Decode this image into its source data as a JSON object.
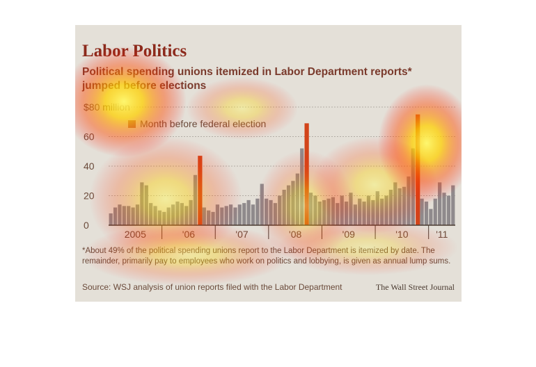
{
  "chart_data": {
    "type": "bar",
    "title": "Labor Politics",
    "subtitle": "Political spending unions itemized in Labor Department reports* jumped before elections",
    "ylabel": "$80 million",
    "ylim": [
      0,
      80
    ],
    "yticks": [
      "$80 million",
      "60",
      "40",
      "20",
      "0"
    ],
    "ytick_values": [
      80,
      60,
      40,
      20,
      0
    ],
    "xticks": [
      "2005",
      "'06",
      "'07",
      "'08",
      "'09",
      "'10",
      "'11"
    ],
    "legend": "Month before federal election",
    "grid": true,
    "series": [
      {
        "values": [
          8,
          12,
          14,
          13,
          13,
          12,
          14,
          29,
          27,
          15,
          13,
          10,
          9,
          12,
          14,
          16,
          15,
          13,
          17,
          34,
          47,
          12,
          10,
          9,
          14,
          12,
          13,
          14,
          12,
          14,
          15,
          17,
          14,
          18,
          28,
          18,
          17,
          15,
          20,
          24,
          27,
          30,
          35,
          52,
          69,
          22,
          20,
          16,
          17,
          18,
          19,
          15,
          20,
          16,
          22,
          14,
          18,
          16,
          20,
          17,
          23,
          18,
          20,
          24,
          29,
          25,
          26,
          33,
          52,
          75,
          18,
          16,
          11,
          18,
          29,
          22,
          20,
          27
        ],
        "highlight": [
          20,
          44,
          69
        ]
      }
    ],
    "colors": {
      "bar": "#8f8a8c",
      "highlight": "#d2441a",
      "grid": "#b2aca4",
      "background": "#e4e0d8"
    }
  },
  "labels": {
    "title": "Labor Politics",
    "subtitle": "Political spending unions itemized in Labor Department reports* jumped before elections",
    "legend": "Month before federal election",
    "footnote": "*About 49% of the political spending unions report to the Labor Department is itemized by date. The remainder, primarily pay to employees who work on politics and lobbying, is given as annual lump sums.",
    "source": "Source: WSJ analysis of union reports filed with the Labor Department",
    "credit": "The Wall Street Journal"
  }
}
